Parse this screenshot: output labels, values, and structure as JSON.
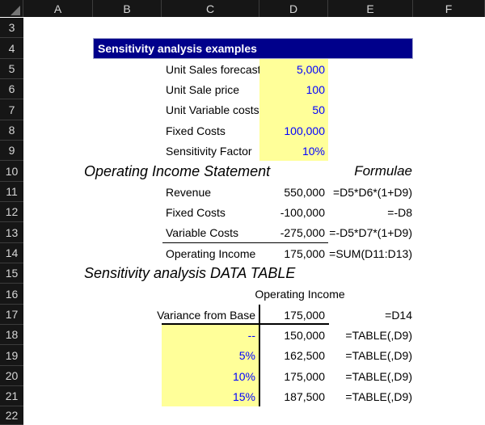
{
  "banner": {
    "title": "Sensitivity analysis examples"
  },
  "inputs": {
    "rows": [
      {
        "label": "Unit Sales forecast",
        "value": "5,000"
      },
      {
        "label": "Unit Sale price",
        "value": "100"
      },
      {
        "label": "Unit Variable costs",
        "value": "50"
      },
      {
        "label": "Fixed Costs",
        "value": "100,000"
      },
      {
        "label": "Sensitivity Factor",
        "value": "10%"
      }
    ]
  },
  "statement": {
    "title": "Operating Income Statement",
    "formulae_label": "Formulae",
    "rows": [
      {
        "label": "Revenue",
        "value": "550,000",
        "formula": "=D5*D6*(1+D9)"
      },
      {
        "label": "Fixed Costs",
        "value": "-100,000",
        "formula": "=-D8"
      },
      {
        "label": "Variable Costs",
        "value": "-275,000",
        "formula": "=-D5*D7*(1+D9)"
      },
      {
        "label": "Operating Income",
        "value": "175,000",
        "formula": "=SUM(D11:D13)"
      }
    ]
  },
  "data_table": {
    "title": "Sensitivity analysis DATA TABLE",
    "column_header": "Operating Income",
    "base": {
      "label": "Variance from Base",
      "value": "175,000",
      "formula": "=D14"
    },
    "rows": [
      {
        "variance": "--",
        "value": "150,000",
        "formula": "=TABLE(,D9)"
      },
      {
        "variance": "5%",
        "value": "162,500",
        "formula": "=TABLE(,D9)"
      },
      {
        "variance": "10%",
        "value": "175,000",
        "formula": "=TABLE(,D9)"
      },
      {
        "variance": "15%",
        "value": "187,500",
        "formula": "=TABLE(,D9)"
      }
    ]
  },
  "grid": {
    "column_headers": [
      "A",
      "B",
      "C",
      "D",
      "E",
      "F"
    ],
    "row_headers": [
      "3",
      "4",
      "5",
      "6",
      "7",
      "8",
      "9",
      "10",
      "11",
      "12",
      "13",
      "14",
      "15",
      "16",
      "17",
      "18",
      "19",
      "20",
      "21",
      "22"
    ]
  },
  "colors": {
    "banner_bg": "#00008B",
    "banner_text": "#FFFFFF",
    "input_bg": "#FFFF99",
    "input_text": "#0000FF",
    "header_bg": "#161616",
    "header_text": "#D6D6D6",
    "cell_text": "#000000"
  }
}
